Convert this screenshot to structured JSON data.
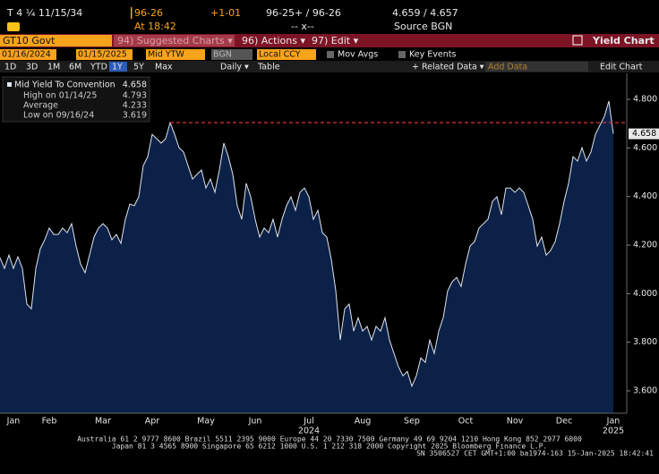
{
  "header": {
    "ticker": "T 4 ¼ 11/15/34",
    "price": "96-26",
    "change": "+1-01",
    "bid_ask": "96-25+ / 96-26",
    "yields": "4.659 / 4.657",
    "time": "At 18:42",
    "size": "-- x--",
    "source": "Source BGN"
  },
  "menu": {
    "security": "GT10 Govt",
    "items": [
      "94) Suggested Charts ▾",
      "96) Actions ▾",
      "97) Edit ▾"
    ],
    "title": "Yield Chart"
  },
  "toolbar": {
    "start": "01/16/2024",
    "end": "01/15/2025",
    "field": "Mid YTW",
    "source": "BGN",
    "currency": "Local CCY",
    "mov_avgs": "Mov Avgs",
    "key_events": "Key Events",
    "periods": [
      "1D",
      "3D",
      "1M",
      "6M",
      "YTD",
      "1Y",
      "5Y",
      "Max"
    ],
    "selected_period": "1Y",
    "frequency": "Daily ▾",
    "table": "Table",
    "related": "+ Related Data ▾",
    "add_data": "Add Data",
    "edit_chart": "Edit Chart"
  },
  "footer": [
    "Australia 61 2 9777 8600 Brazil 5511 2395 9000 Europe 44 20 7330 7500 Germany 49 69 9204 1210 Hong Kong 852 2977 6000",
    "Japan 81 3 4565 8900       Singapore 65 6212 1000       U.S. 1 212 318 2000       Copyright 2025 Bloomberg Finance L.P.",
    "SN 3506527 CET  GMT+1:00 ba1974-163 15-Jan-2025 18:42:41"
  ],
  "chart_data": {
    "type": "area",
    "categories": [
      null,
      null,
      null,
      "Jan",
      null,
      null,
      null,
      null,
      null,
      null,
      null,
      "Feb",
      null,
      null,
      null,
      null,
      null,
      null,
      null,
      null,
      null,
      null,
      null,
      "Mar",
      null,
      null,
      null,
      null,
      null,
      null,
      null,
      null,
      null,
      null,
      "Apr",
      null,
      null,
      null,
      null,
      null,
      null,
      null,
      null,
      null,
      null,
      null,
      "May",
      null,
      null,
      null,
      null,
      null,
      null,
      null,
      null,
      null,
      null,
      "Jun",
      null,
      null,
      null,
      null,
      null,
      null,
      null,
      null,
      null,
      null,
      null,
      "Jul",
      null,
      null,
      null,
      null,
      null,
      null,
      null,
      null,
      null,
      null,
      null,
      "Aug",
      null,
      null,
      null,
      null,
      null,
      null,
      null,
      null,
      null,
      null,
      "Sep",
      null,
      null,
      null,
      null,
      null,
      null,
      null,
      null,
      null,
      null,
      null,
      "Oct",
      null,
      null,
      null,
      null,
      null,
      null,
      null,
      null,
      null,
      null,
      "Nov",
      null,
      null,
      null,
      null,
      null,
      null,
      null,
      null,
      null,
      null,
      "Dec",
      null,
      null,
      null,
      null,
      null,
      null,
      null,
      null,
      null,
      null,
      "Jan"
    ],
    "year_labels": [
      null,
      null,
      null,
      null,
      null,
      null,
      null,
      null,
      null,
      null,
      null,
      null,
      null,
      null,
      null,
      null,
      null,
      null,
      null,
      null,
      null,
      null,
      null,
      null,
      null,
      null,
      null,
      null,
      null,
      null,
      null,
      null,
      null,
      null,
      null,
      null,
      null,
      null,
      null,
      null,
      null,
      null,
      null,
      null,
      null,
      null,
      null,
      null,
      null,
      null,
      null,
      null,
      null,
      null,
      null,
      null,
      null,
      null,
      null,
      null,
      null,
      null,
      null,
      null,
      null,
      null,
      null,
      null,
      null,
      "2024",
      null,
      null,
      null,
      null,
      null,
      null,
      null,
      null,
      null,
      null,
      null,
      null,
      null,
      null,
      null,
      null,
      null,
      null,
      null,
      null,
      null,
      null,
      null,
      null,
      null,
      null,
      null,
      null,
      null,
      null,
      null,
      null,
      null,
      null,
      null,
      null,
      null,
      null,
      null,
      null,
      null,
      null,
      null,
      null,
      null,
      null,
      null,
      null,
      null,
      null,
      null,
      null,
      null,
      null,
      null,
      null,
      null,
      null,
      null,
      null,
      null,
      null,
      null,
      null,
      null,
      null,
      null,
      "2025"
    ],
    "series": [
      {
        "name": "Mid Yield To Convention",
        "color": "#dfe4ee",
        "fill": "#0c2148",
        "values": [
          4.148,
          4.104,
          4.159,
          4.104,
          4.152,
          4.104,
          3.957,
          3.938,
          4.104,
          4.185,
          4.222,
          4.27,
          4.244,
          4.244,
          4.27,
          4.251,
          4.288,
          4.196,
          4.122,
          4.086,
          4.159,
          4.233,
          4.27,
          4.288,
          4.27,
          4.222,
          4.244,
          4.207,
          4.306,
          4.369,
          4.362,
          4.399,
          4.527,
          4.564,
          4.656,
          4.638,
          4.62,
          4.638,
          4.704,
          4.656,
          4.601,
          4.583,
          4.527,
          4.472,
          4.491,
          4.509,
          4.435,
          4.472,
          4.417,
          4.509,
          4.62,
          4.564,
          4.491,
          4.362,
          4.306,
          4.454,
          4.399,
          4.306,
          4.233,
          4.27,
          4.251,
          4.306,
          4.233,
          4.306,
          4.362,
          4.399,
          4.343,
          4.417,
          4.435,
          4.399,
          4.306,
          4.343,
          4.251,
          4.233,
          4.141,
          4.012,
          3.809,
          3.938,
          3.957,
          3.846,
          3.901,
          3.846,
          3.865,
          3.809,
          3.865,
          3.846,
          3.901,
          3.809,
          3.754,
          3.699,
          3.662,
          3.68,
          3.619,
          3.662,
          3.736,
          3.717,
          3.809,
          3.754,
          3.846,
          3.901,
          4.012,
          4.049,
          4.067,
          4.03,
          4.122,
          4.196,
          4.214,
          4.27,
          4.288,
          4.306,
          4.38,
          4.399,
          4.325,
          4.435,
          4.435,
          4.417,
          4.435,
          4.417,
          4.362,
          4.306,
          4.196,
          4.233,
          4.159,
          4.178,
          4.214,
          4.288,
          4.38,
          4.454,
          4.564,
          4.546,
          4.601,
          4.546,
          4.583,
          4.656,
          4.693,
          4.73,
          4.793,
          4.658
        ]
      }
    ],
    "last_value": 4.658,
    "stats": [
      {
        "label": "High on 01/14/25",
        "value": 4.793
      },
      {
        "label": "Average",
        "value": 4.233
      },
      {
        "label": "Low on 09/16/24",
        "value": 3.619
      }
    ],
    "reference_line": {
      "value": 4.704,
      "color": "#e0323c"
    },
    "ylim": [
      3.508,
      4.907
    ],
    "yticks": [
      {
        "value": 3.6,
        "label": "3.600"
      },
      {
        "value": 3.8,
        "label": "3.800"
      },
      {
        "value": 4.0,
        "label": "4.000"
      },
      {
        "value": 4.2,
        "label": "4.200"
      },
      {
        "value": 4.4,
        "label": "4.400"
      },
      {
        "value": 4.6,
        "label": "4.600"
      },
      {
        "value": 4.8,
        "label": "4.800"
      }
    ],
    "grid": false
  }
}
